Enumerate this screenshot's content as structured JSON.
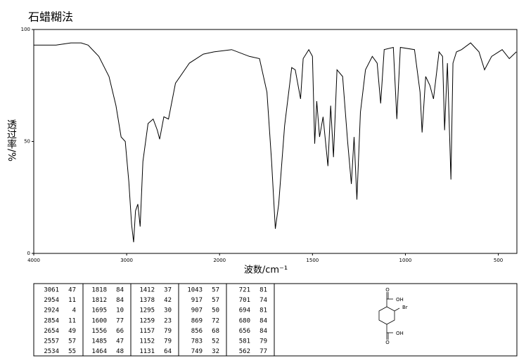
{
  "chart_data": {
    "type": "line",
    "title": "石蜡糊法",
    "x_label": "波数/cm⁻¹",
    "y_label": "透过率/%",
    "x": [
      4000,
      3760,
      3600,
      3490,
      3415,
      3300,
      3190,
      3115,
      3060,
      3015,
      2977,
      2947,
      2925,
      2905,
      2880,
      2855,
      2825,
      2770,
      2715,
      2670,
      2645,
      2600,
      2550,
      2475,
      2325,
      2175,
      2060,
      1935,
      1840,
      1785,
      1745,
      1720,
      1700,
      1682,
      1650,
      1612,
      1593,
      1564,
      1550,
      1520,
      1500,
      1488,
      1477,
      1462,
      1443,
      1417,
      1402,
      1387,
      1368,
      1338,
      1311,
      1291,
      1276,
      1261,
      1242,
      1215,
      1178,
      1152,
      1133,
      1114,
      1065,
      1046,
      1027,
      951,
      921,
      910,
      891,
      868,
      849,
      819,
      800,
      789,
      774,
      755,
      744,
      725,
      698,
      649,
      604,
      574,
      536,
      479,
      441,
      403
    ],
    "values": [
      93,
      93,
      94,
      94,
      93,
      88,
      79,
      66,
      52,
      50,
      32,
      13,
      5,
      19,
      22,
      12,
      41,
      58,
      60,
      55,
      51,
      61,
      60,
      76,
      85,
      89,
      90,
      91,
      88,
      87,
      72,
      41,
      11,
      22,
      57,
      83,
      82,
      69,
      87,
      91,
      88,
      49,
      68,
      52,
      61,
      39,
      66,
      43,
      82,
      79,
      50,
      31,
      52,
      24,
      63,
      82,
      88,
      85,
      67,
      91,
      92,
      60,
      92,
      91,
      72,
      54,
      79,
      75,
      69,
      90,
      88,
      55,
      85,
      33,
      85,
      90,
      91,
      94,
      90,
      82,
      88,
      91,
      87,
      90
    ],
    "color": "#000000",
    "xlim": [
      4000,
      400
    ],
    "x_scale_change": 2000,
    "xticks": [
      4000,
      3000,
      2000,
      1500,
      1000,
      500
    ],
    "ylim": [
      0,
      100
    ],
    "yticks": [
      0,
      50,
      100
    ]
  },
  "peak_table": [
    [
      3061,
      47
    ],
    [
      2954,
      11
    ],
    [
      2924,
      4
    ],
    [
      2854,
      11
    ],
    [
      2654,
      49
    ],
    [
      2557,
      57
    ],
    [
      2534,
      55
    ],
    [
      1818,
      84
    ],
    [
      1812,
      84
    ],
    [
      1695,
      10
    ],
    [
      1600,
      77
    ],
    [
      1556,
      66
    ],
    [
      1485,
      47
    ],
    [
      1464,
      48
    ],
    [
      1412,
      37
    ],
    [
      1378,
      42
    ],
    [
      1295,
      30
    ],
    [
      1259,
      23
    ],
    [
      1157,
      79
    ],
    [
      1152,
      79
    ],
    [
      1131,
      64
    ],
    [
      1043,
      57
    ],
    [
      917,
      57
    ],
    [
      907,
      50
    ],
    [
      869,
      72
    ],
    [
      856,
      68
    ],
    [
      783,
      52
    ],
    [
      749,
      32
    ],
    [
      721,
      81
    ],
    [
      701,
      74
    ],
    [
      694,
      81
    ],
    [
      680,
      84
    ],
    [
      656,
      84
    ],
    [
      581,
      79
    ],
    [
      562,
      77
    ]
  ],
  "structure_labels": [
    "O",
    "OH",
    "Br",
    "O",
    "OH"
  ]
}
